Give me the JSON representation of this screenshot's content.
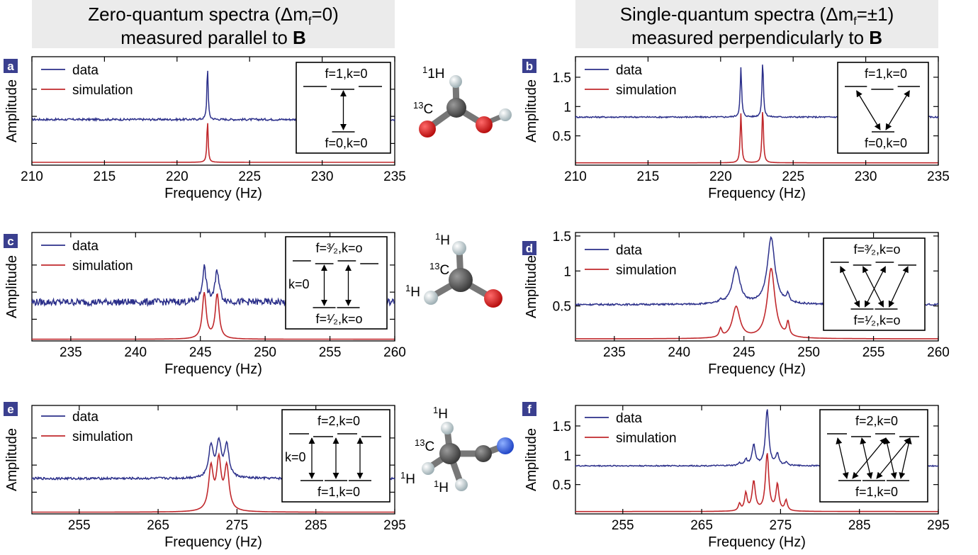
{
  "headers": {
    "left_line1": "Zero-quantum spectra (Δm",
    "left_sub": "f",
    "left_line1b": "=0)",
    "left_line2": "measured parallel to ",
    "right_line1": "Single-quantum spectra (Δm",
    "right_sub": "f",
    "right_line1b": "=±1)",
    "right_line2": "measured perpendicularly to ",
    "bold_B": "B"
  },
  "colors": {
    "data": "#2b2f8a",
    "simulation": "#c0282c",
    "badge": "#3a3f8f"
  },
  "legend": {
    "data": "data",
    "simulation": "simulation"
  },
  "xlabel": "Frequency (Hz)",
  "ylabel": "Amplitude",
  "molecules": {
    "formic": {
      "labels": [
        "1H",
        "13C"
      ]
    },
    "formaldehyde": {
      "labels": [
        "1H",
        "13C",
        "1H"
      ]
    },
    "acetonitrile": {
      "labels": [
        "1H",
        "13C",
        "1H",
        "1H"
      ]
    }
  },
  "chart_data": [
    {
      "id": "a",
      "type": "line",
      "title": "",
      "xlabel": "Frequency (Hz)",
      "ylabel": "Amplitude",
      "xlim": [
        210,
        235
      ],
      "xticks": [
        210,
        215,
        220,
        225,
        230,
        235
      ],
      "yticks": [],
      "data_baseline": 0.8,
      "noise": 0.018,
      "sim_baseline": 0.05,
      "peaks": [
        {
          "x": 222.1,
          "h_data": 0.95,
          "h_sim": 0.75,
          "w": 0.05
        }
      ],
      "inset": {
        "top": "f=1,k=0",
        "bottom": "f=0,k=0"
      }
    },
    {
      "id": "b",
      "type": "line",
      "title": "",
      "xlabel": "Frequency (Hz)",
      "ylabel": "Amplitude",
      "xlim": [
        210,
        235
      ],
      "xticks": [
        210,
        215,
        220,
        225,
        230,
        235
      ],
      "yticks": [
        0.5,
        1,
        1.5
      ],
      "ylim": [
        0,
        1.85
      ],
      "data_baseline": 0.82,
      "noise": 0.012,
      "sim_baseline": 0.04,
      "peaks": [
        {
          "x": 221.4,
          "h_data": 0.85,
          "h_sim": 0.85,
          "w": 0.06
        },
        {
          "x": 222.9,
          "h_data": 0.95,
          "h_sim": 0.92,
          "w": 0.06
        }
      ],
      "inset": {
        "top": "f=1,k=0",
        "bottom": "f=0,k=0"
      }
    },
    {
      "id": "c",
      "type": "line",
      "title": "",
      "xlabel": "Frequency (Hz)",
      "ylabel": "Amplitude",
      "xlim": [
        232,
        260
      ],
      "xticks": [
        235,
        240,
        245,
        250,
        255,
        260
      ],
      "yticks": [],
      "data_baseline": 0.68,
      "noise": 0.06,
      "sim_baseline": 0.03,
      "peaks": [
        {
          "x": 245.3,
          "h_data": 0.6,
          "h_sim": 0.8,
          "w": 0.18
        },
        {
          "x": 246.3,
          "h_data": 0.55,
          "h_sim": 0.78,
          "w": 0.18
        }
      ],
      "inset": {
        "top": "f=³⁄₂,k=o",
        "bottom": "f=¹⁄₂,k=o",
        "side": "k=0"
      }
    },
    {
      "id": "d",
      "type": "line",
      "title": "",
      "xlabel": "Frequency (Hz)",
      "ylabel": "Amplitude",
      "xlim": [
        232,
        260
      ],
      "xticks": [
        235,
        240,
        245,
        250,
        255,
        260
      ],
      "yticks": [
        0.5,
        1,
        1.5
      ],
      "ylim": [
        0,
        1.55
      ],
      "data_baseline": 0.52,
      "noise": 0.012,
      "sim_baseline": 0.03,
      "peaks": [
        {
          "x": 243.2,
          "h_data": 0.05,
          "h_sim": 0.12,
          "w": 0.12
        },
        {
          "x": 244.4,
          "h_data": 0.52,
          "h_sim": 0.45,
          "w": 0.35
        },
        {
          "x": 247.1,
          "h_data": 0.95,
          "h_sim": 1.0,
          "w": 0.35
        },
        {
          "x": 248.4,
          "h_data": 0.12,
          "h_sim": 0.2,
          "w": 0.12
        }
      ],
      "inset": {
        "top": "f=³⁄₂,k=o",
        "bottom": "f=¹⁄₂,k=o"
      }
    },
    {
      "id": "e",
      "type": "line",
      "title": "",
      "xlabel": "Frequency (Hz)",
      "ylabel": "Amplitude",
      "xlim": [
        249,
        295
      ],
      "xticks": [
        255,
        265,
        275,
        285,
        295
      ],
      "yticks": [],
      "data_baseline": 0.62,
      "noise": 0.02,
      "sim_baseline": 0.03,
      "peaks": [
        {
          "x": 271.7,
          "h_data": 0.55,
          "h_sim": 0.75,
          "w": 0.35
        },
        {
          "x": 272.7,
          "h_data": 0.6,
          "h_sim": 0.85,
          "w": 0.35
        },
        {
          "x": 273.7,
          "h_data": 0.55,
          "h_sim": 0.75,
          "w": 0.35
        }
      ],
      "inset": {
        "top": "f=2,k=0",
        "bottom": "f=1,k=0",
        "side": "k=0"
      }
    },
    {
      "id": "f",
      "type": "line",
      "title": "",
      "xlabel": "Frequency (Hz)",
      "ylabel": "Amplitude",
      "xlim": [
        249,
        295
      ],
      "xticks": [
        255,
        265,
        275,
        285,
        295
      ],
      "yticks": [
        0.5,
        1,
        1.5
      ],
      "ylim": [
        0,
        1.85
      ],
      "data_baseline": 0.82,
      "noise": 0.01,
      "sim_baseline": 0.04,
      "peaks": [
        {
          "x": 269.8,
          "h_data": 0.04,
          "h_sim": 0.12,
          "w": 0.18
        },
        {
          "x": 270.6,
          "h_data": 0.1,
          "h_sim": 0.3,
          "w": 0.2
        },
        {
          "x": 271.6,
          "h_data": 0.35,
          "h_sim": 0.5,
          "w": 0.25
        },
        {
          "x": 273.3,
          "h_data": 0.95,
          "h_sim": 0.98,
          "w": 0.25
        },
        {
          "x": 274.6,
          "h_data": 0.2,
          "h_sim": 0.45,
          "w": 0.22
        },
        {
          "x": 275.7,
          "h_data": 0.05,
          "h_sim": 0.18,
          "w": 0.2
        }
      ],
      "inset": {
        "top": "f=2,k=0",
        "bottom": "f=1,k=0"
      }
    }
  ]
}
